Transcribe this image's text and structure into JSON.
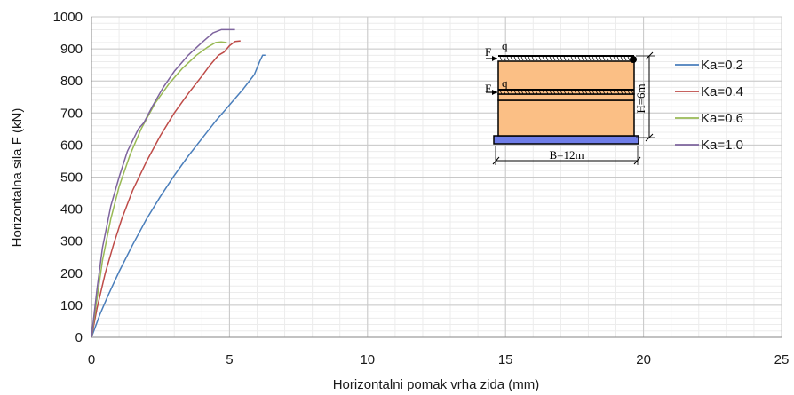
{
  "chart_data": {
    "type": "line",
    "title": "",
    "xlabel": "Horizontalni  pomak vrha zida (mm)",
    "ylabel": "Horizontalna  sila F (kN)",
    "xlim": [
      0,
      25
    ],
    "ylim": [
      0,
      1000
    ],
    "x_ticks": [
      "0",
      "5",
      "10",
      "15",
      "20",
      "25"
    ],
    "y_ticks": [
      "0",
      "100",
      "200",
      "300",
      "400",
      "500",
      "600",
      "700",
      "800",
      "900",
      "1000"
    ],
    "grid": {
      "major": true,
      "minor": true
    },
    "legend_position": "right",
    "series": [
      {
        "name": "Ka=0.2",
        "color": "#4a7ebb",
        "points": [
          [
            0,
            0
          ],
          [
            0.3,
            70
          ],
          [
            0.6,
            130
          ],
          [
            1.0,
            205
          ],
          [
            1.5,
            290
          ],
          [
            2.0,
            370
          ],
          [
            2.5,
            440
          ],
          [
            3.0,
            505
          ],
          [
            3.5,
            565
          ],
          [
            4.0,
            620
          ],
          [
            4.5,
            675
          ],
          [
            5.0,
            725
          ],
          [
            5.5,
            775
          ],
          [
            5.9,
            820
          ],
          [
            6.1,
            862
          ],
          [
            6.2,
            880
          ],
          [
            6.3,
            880
          ]
        ]
      },
      {
        "name": "Ka=0.4",
        "color": "#be4b48",
        "points": [
          [
            0,
            0
          ],
          [
            0.2,
            90
          ],
          [
            0.5,
            200
          ],
          [
            0.8,
            290
          ],
          [
            1.1,
            370
          ],
          [
            1.5,
            460
          ],
          [
            2.0,
            550
          ],
          [
            2.5,
            630
          ],
          [
            3.0,
            700
          ],
          [
            3.5,
            760
          ],
          [
            4.0,
            815
          ],
          [
            4.3,
            850
          ],
          [
            4.6,
            880
          ],
          [
            4.8,
            890
          ],
          [
            5.0,
            910
          ],
          [
            5.2,
            923
          ],
          [
            5.4,
            925
          ]
        ]
      },
      {
        "name": "Ka=0.6",
        "color": "#98b954",
        "points": [
          [
            0,
            0
          ],
          [
            0.2,
            120
          ],
          [
            0.4,
            240
          ],
          [
            0.7,
            370
          ],
          [
            1.0,
            470
          ],
          [
            1.4,
            570
          ],
          [
            1.8,
            650
          ],
          [
            2.3,
            730
          ],
          [
            2.8,
            790
          ],
          [
            3.3,
            840
          ],
          [
            3.8,
            880
          ],
          [
            4.2,
            905
          ],
          [
            4.5,
            920
          ],
          [
            4.7,
            922
          ],
          [
            4.9,
            920
          ]
        ]
      },
      {
        "name": "Ka=1.0",
        "color": "#7e649e",
        "points": [
          [
            0,
            0
          ],
          [
            0.2,
            150
          ],
          [
            0.4,
            280
          ],
          [
            0.7,
            410
          ],
          [
            1.0,
            500
          ],
          [
            1.3,
            580
          ],
          [
            1.7,
            650
          ],
          [
            1.9,
            670
          ],
          [
            2.2,
            720
          ],
          [
            2.6,
            780
          ],
          [
            3.0,
            830
          ],
          [
            3.5,
            880
          ],
          [
            4.0,
            920
          ],
          [
            4.4,
            950
          ],
          [
            4.7,
            960
          ],
          [
            5.0,
            960
          ],
          [
            5.2,
            960
          ]
        ]
      }
    ]
  },
  "inset": {
    "f_label_top": "F",
    "q_label_top": "q",
    "f_label_mid": "F",
    "q_label_mid": "q",
    "height_label": "H=6m",
    "width_label": "B=12m"
  }
}
